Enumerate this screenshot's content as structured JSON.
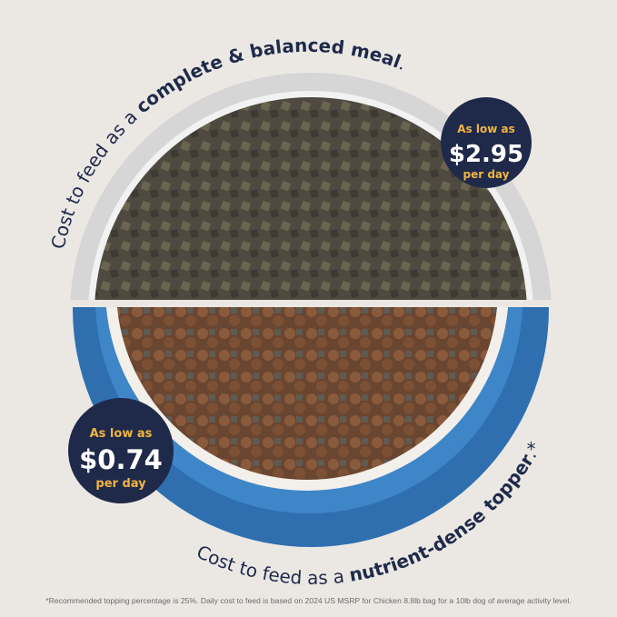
{
  "top_caption": {
    "prefix": "Cost to feed as a ",
    "emphasis": "complete & balanced meal",
    "suffix": "."
  },
  "bottom_caption": {
    "prefix": "Cost to feed as a ",
    "emphasis": "nutrient-dense topper",
    "suffix": ".*"
  },
  "top_badge": {
    "line1": "As low as",
    "price": "$2.95",
    "line2": "per day"
  },
  "bottom_badge": {
    "line1": "As low as",
    "price": "$0.74",
    "line2": "per day"
  },
  "footnote": "*Recommended topping percentage is 25%. Daily cost to feed is based on 2024 US MSRP for Chicken 8.8lb bag for a 10lb dog of average activity level.",
  "colors": {
    "background": "#ebe8e4",
    "navy": "#1f2a4a",
    "gold": "#f2b441",
    "blue_bowl": "#2f6fb0",
    "gray_bowl": "#d9d9d9"
  }
}
